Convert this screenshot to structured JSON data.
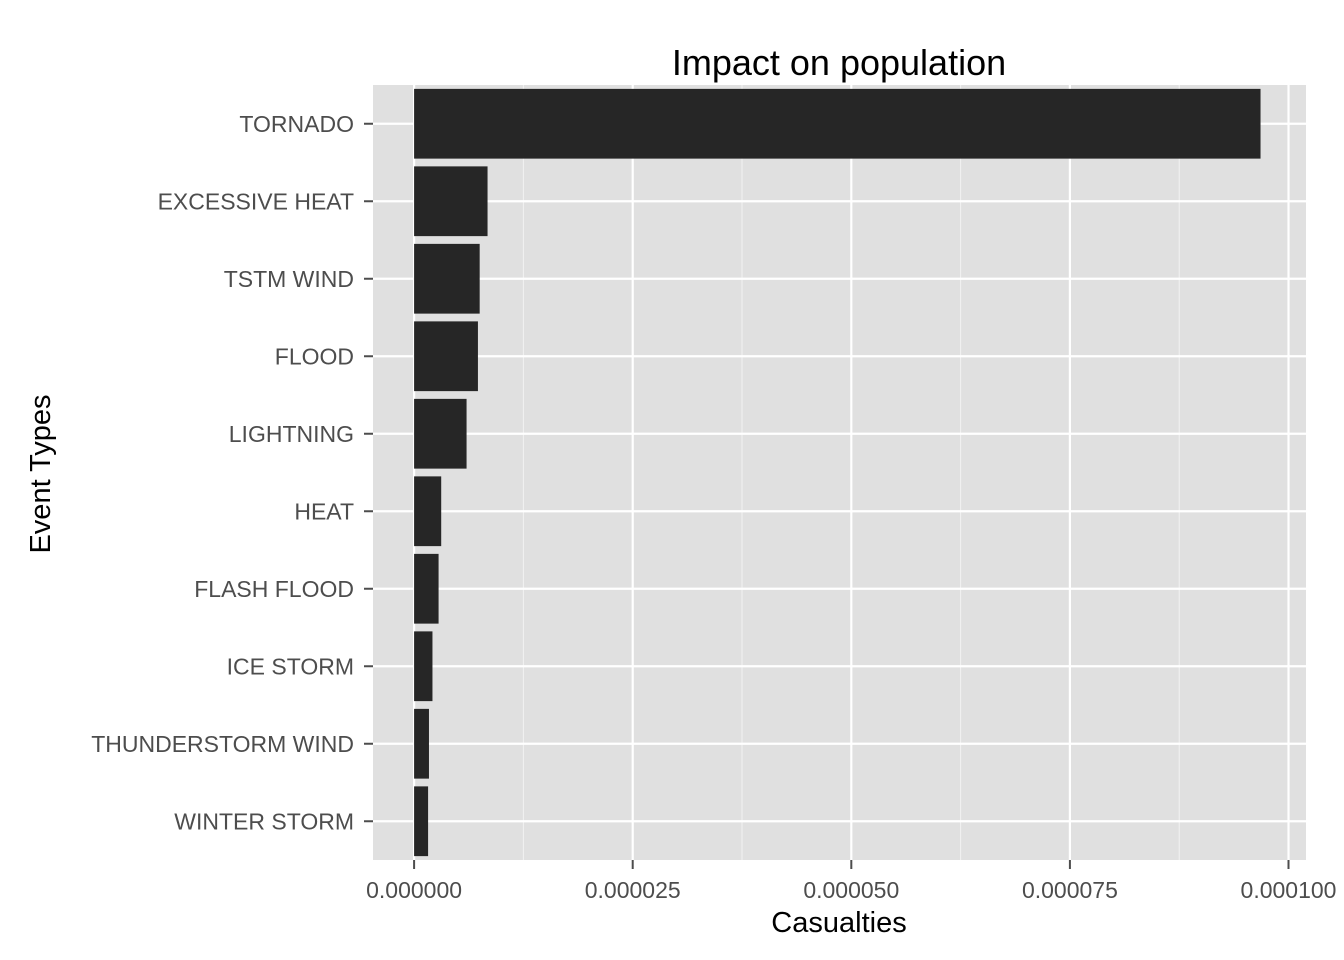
{
  "chart_data": {
    "type": "bar",
    "orientation": "horizontal",
    "title": "Impact on population",
    "xlabel": "Casualties",
    "ylabel": "Event Types",
    "categories": [
      "TORNADO",
      "EXCESSIVE HEAT",
      "TSTM WIND",
      "FLOOD",
      "LIGHTNING",
      "HEAT",
      "FLASH FLOOD",
      "ICE STORM",
      "THUNDERSTORM WIND",
      "WINTER STORM"
    ],
    "values": [
      9.68e-05,
      8.4e-06,
      7.5e-06,
      7.3e-06,
      6e-06,
      3.1e-06,
      2.8e-06,
      2.1e-06,
      1.7e-06,
      1.6e-06
    ],
    "xlim": [
      -4.7e-06,
      0.000102
    ],
    "x_ticks": [
      0,
      2.5e-05,
      5e-05,
      7.5e-05,
      0.0001
    ],
    "x_tick_labels": [
      "0.000000",
      "0.000025",
      "0.000050",
      "0.000075",
      "0.000100"
    ],
    "grid": true,
    "colors": {
      "bar": "#262626",
      "panel": "#e0e0e0",
      "grid": "#ffffff"
    }
  }
}
